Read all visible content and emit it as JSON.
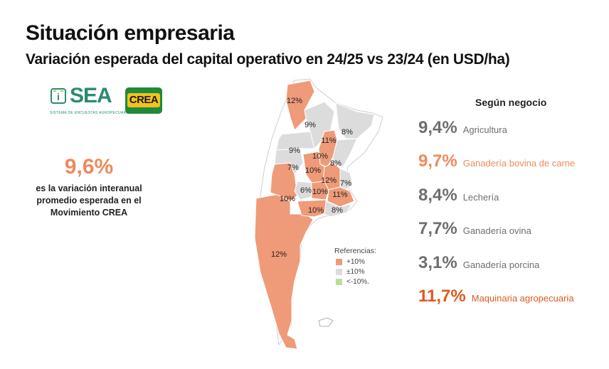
{
  "header": {
    "title": "Situación empresaria",
    "subtitle": "Variación esperada del capital operativo en 24/25 vs 23/24 (en USD/ha)"
  },
  "logos": {
    "sea_word": "SEA",
    "sea_tagline": "SISTEMA DE ENCUESTAS AGROPECUARIAS",
    "crea_word": "CREA"
  },
  "summary": {
    "value": "9,6%",
    "description": "es la variación interanual promedio esperada en el Movimiento CREA"
  },
  "colors": {
    "increase": "#ef9a78",
    "stable": "#dcdcdc",
    "decrease": "#b6e09a",
    "accent_orange": "#ef8a5c",
    "accent_red": "#dd5a1f",
    "gray_text": "#6f6f6f"
  },
  "map": {
    "regions": [
      {
        "label": "12%",
        "category": "+10%"
      },
      {
        "label": "9%",
        "category": "±10%"
      },
      {
        "label": "8%",
        "category": "±10%"
      },
      {
        "label": "11%",
        "category": "+10%"
      },
      {
        "label": "9%",
        "category": "±10%"
      },
      {
        "label": "10%",
        "category": "+10%"
      },
      {
        "label": "8%",
        "category": "±10%"
      },
      {
        "label": "7%",
        "category": "±10%"
      },
      {
        "label": "10%",
        "category": "+10%"
      },
      {
        "label": "12%",
        "category": "+10%"
      },
      {
        "label": "7%",
        "category": "±10%"
      },
      {
        "label": "6%",
        "category": "±10%"
      },
      {
        "label": "10%",
        "category": "+10%"
      },
      {
        "label": "11%",
        "category": "+10%"
      },
      {
        "label": "10%",
        "category": "+10%"
      },
      {
        "label": "10%",
        "category": "+10%"
      },
      {
        "label": "8%",
        "category": "±10%"
      },
      {
        "label": "12%",
        "category": "+10%"
      }
    ]
  },
  "legend": {
    "title": "Referencias:",
    "items": [
      {
        "label": "+10%",
        "color": "#ef9a78"
      },
      {
        "label": "±10%",
        "color": "#dcdcdc"
      },
      {
        "label": "<-10%.",
        "color": "#b6e09a"
      }
    ]
  },
  "by_business": {
    "title": "Según negocio",
    "items": [
      {
        "value": "9,4%",
        "label": "Agricultura",
        "color": "#6f6f6f"
      },
      {
        "value": "9,7%",
        "label": "Ganadería bovina de carne",
        "color": "#ef8a5c"
      },
      {
        "value": "8,4%",
        "label": "Lechería",
        "color": "#6f6f6f"
      },
      {
        "value": "7,7%",
        "label": "Ganadería ovina",
        "color": "#6f6f6f"
      },
      {
        "value": "3,1%",
        "label": "Ganadería porcina",
        "color": "#6f6f6f"
      },
      {
        "value": "11,7%",
        "label": "Maquinaria agropecuaria",
        "color": "#dd5a1f"
      }
    ]
  }
}
